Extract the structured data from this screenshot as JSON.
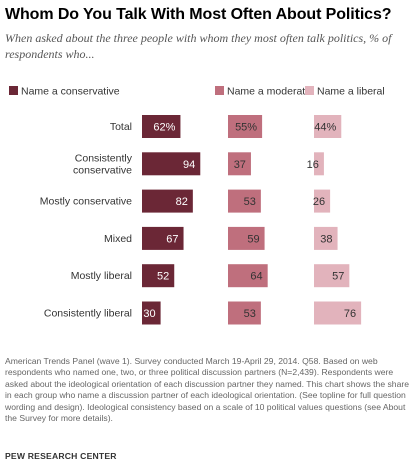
{
  "title": "Whom Do You Talk With Most Often About Politics?",
  "subtitle": "When asked about the three people with whom they most often talk politics, % of respondents who...",
  "note": "American Trends Panel (wave 1). Survey conducted March 19-April 29, 2014. Q58. Based on web respondents who named one, two, or three political discussion partners (N=2,439). Respondents were asked about the ideological orientation of each discussion partner they named. This chart shows the share in each group who name a discussion partner of each ideological orientation. (See topline for full question wording and design). Ideological consistency based on a scale of 10 political values questions (see About the Survey for more details).",
  "source": "PEW RESEARCH CENTER",
  "colors": {
    "conservative": "#6b2736",
    "moderate": "#bf6f7d",
    "liberal": "#e2b3bc",
    "text_dark": "#ffffff",
    "text_light": "#333333"
  },
  "chart_data": {
    "type": "bar",
    "title": "Whom Do You Talk With Most Often About Politics?",
    "categories": [
      "Total",
      "Consistently conservative",
      "Mostly conservative",
      "Mixed",
      "Mostly liberal",
      "Consistently liberal"
    ],
    "category_lines": [
      [
        "Total"
      ],
      [
        "Consistently",
        "conservative"
      ],
      [
        "Mostly conservative"
      ],
      [
        "Mixed"
      ],
      [
        "Mostly liberal"
      ],
      [
        "Consistently liberal"
      ]
    ],
    "series": [
      {
        "name": "Name a conservative",
        "values": [
          62,
          94,
          82,
          67,
          52,
          30
        ],
        "labels": [
          "62%",
          "94",
          "82",
          "67",
          "52",
          "30"
        ]
      },
      {
        "name": "Name a moderate",
        "values": [
          55,
          37,
          53,
          59,
          64,
          53
        ],
        "labels": [
          "55%",
          "37",
          "53",
          "59",
          "64",
          "53"
        ]
      },
      {
        "name": "Name a liberal",
        "values": [
          44,
          16,
          26,
          38,
          57,
          76
        ],
        "labels": [
          "44%",
          "16",
          "26",
          "38",
          "57",
          "76"
        ]
      }
    ],
    "ylim": [
      0,
      100
    ],
    "legend": "top"
  }
}
